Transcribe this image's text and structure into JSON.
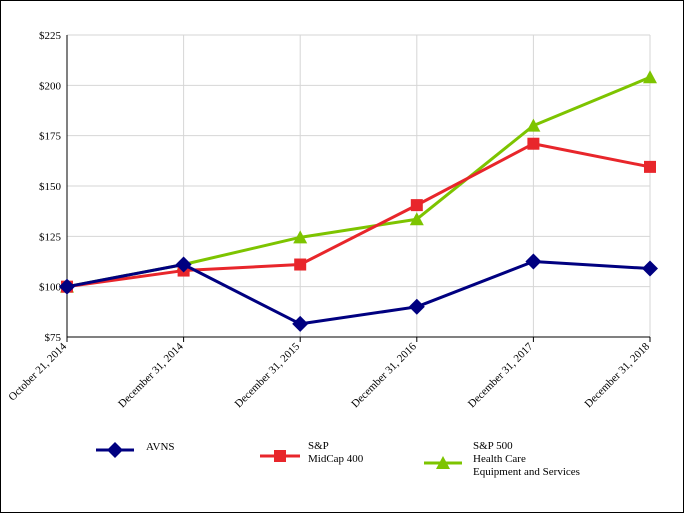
{
  "chart_data": {
    "type": "line",
    "title": "",
    "xlabel": "",
    "ylabel": "",
    "categories": [
      "October 21, 2014",
      "December 31, 2014",
      "December 31, 2015",
      "December 31, 2016",
      "December 31, 2017",
      "December 31, 2018"
    ],
    "ylim": [
      75,
      225
    ],
    "yticks": [
      75,
      100,
      125,
      150,
      175,
      200,
      225
    ],
    "ytick_labels": [
      "$75",
      "$100",
      "$125",
      "$150",
      "$175",
      "$200",
      "$225"
    ],
    "grid": true,
    "legend_position": "bottom",
    "series": [
      {
        "name": "AVNS",
        "label_lines": [
          "AVNS"
        ],
        "color": "#000080",
        "marker": "diamond",
        "values": [
          100,
          111,
          81.5,
          90,
          112.5,
          109
        ]
      },
      {
        "name": "S&P MidCap 400",
        "label_lines": [
          "S&P",
          "MidCap 400"
        ],
        "color": "#e8262b",
        "marker": "square",
        "values": [
          100,
          108,
          111,
          140.5,
          171,
          159.5
        ]
      },
      {
        "name": "S&P 500 Health Care Equipment and Services",
        "label_lines": [
          "S&P 500",
          "Health Care",
          "Equipment and Services"
        ],
        "color": "#7dc400",
        "marker": "triangle",
        "values": [
          100,
          111,
          124.5,
          133.5,
          180,
          204
        ]
      }
    ]
  }
}
